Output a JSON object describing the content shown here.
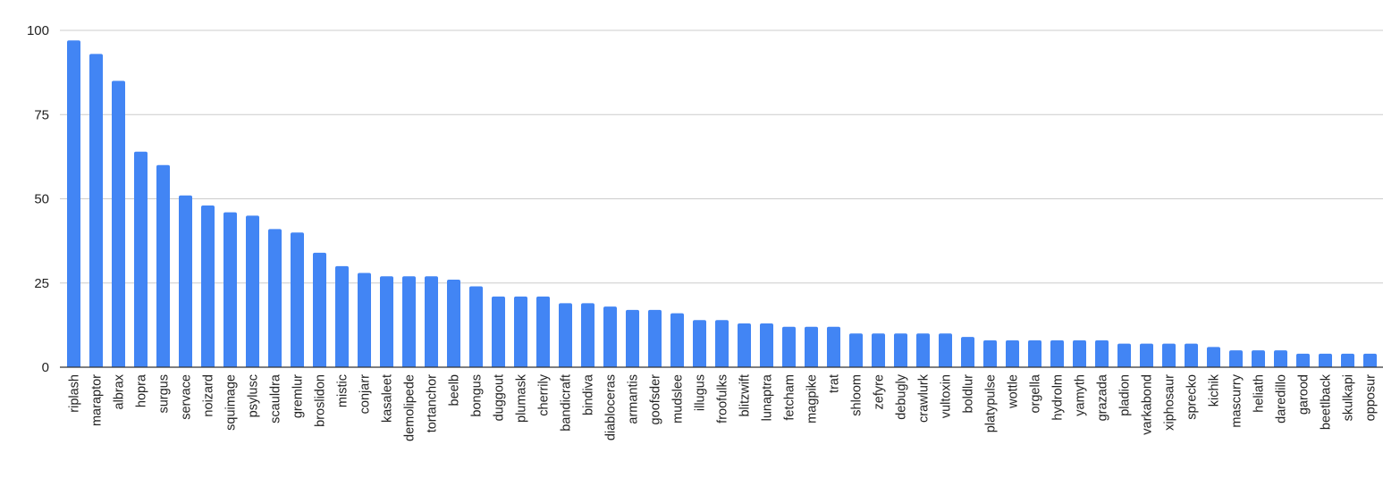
{
  "chart_data": {
    "type": "bar",
    "categories": [
      "riplash",
      "maraptor",
      "albrax",
      "hopra",
      "surgus",
      "servace",
      "noizard",
      "squimage",
      "psylusc",
      "scauldra",
      "gremlur",
      "broslidon",
      "mistic",
      "conjarr",
      "kasaleet",
      "demolipede",
      "tortanchor",
      "beelb",
      "bongus",
      "duggout",
      "plumask",
      "cherrily",
      "bandicraft",
      "bindiva",
      "diabloceras",
      "armantis",
      "goofsder",
      "mudslee",
      "illugus",
      "froofulks",
      "blitzwift",
      "lunaptra",
      "fetcham",
      "magpike",
      "trat",
      "shloom",
      "zefyre",
      "debugly",
      "crawlurk",
      "vultoxin",
      "boldlur",
      "platypulse",
      "wottle",
      "orgella",
      "hydrolm",
      "yamyth",
      "grazada",
      "pladion",
      "varkabond",
      "xiphosaur",
      "sprecko",
      "kichik",
      "mascurry",
      "heliath",
      "daredillo",
      "garood",
      "beetlback",
      "skulkapi",
      "opposur"
    ],
    "values": [
      97,
      93,
      85,
      64,
      60,
      51,
      48,
      46,
      45,
      41,
      40,
      34,
      30,
      28,
      27,
      27,
      27,
      26,
      24,
      21,
      21,
      21,
      19,
      19,
      18,
      17,
      17,
      16,
      14,
      14,
      13,
      13,
      12,
      12,
      12,
      10,
      10,
      10,
      10,
      10,
      9,
      8,
      8,
      8,
      8,
      8,
      8,
      7,
      7,
      7,
      7,
      6,
      5,
      5,
      5,
      4,
      4,
      4,
      4
    ],
    "ylim": [
      0,
      100
    ],
    "yticks": [
      "0",
      "25",
      "50",
      "75",
      "100"
    ],
    "title": "",
    "xlabel": "",
    "ylabel": "",
    "grid": true,
    "legend": "none"
  },
  "colors": {
    "bar": "#4285f4",
    "grid": "#cccccc",
    "axis": "#333333",
    "text": "#222222"
  }
}
